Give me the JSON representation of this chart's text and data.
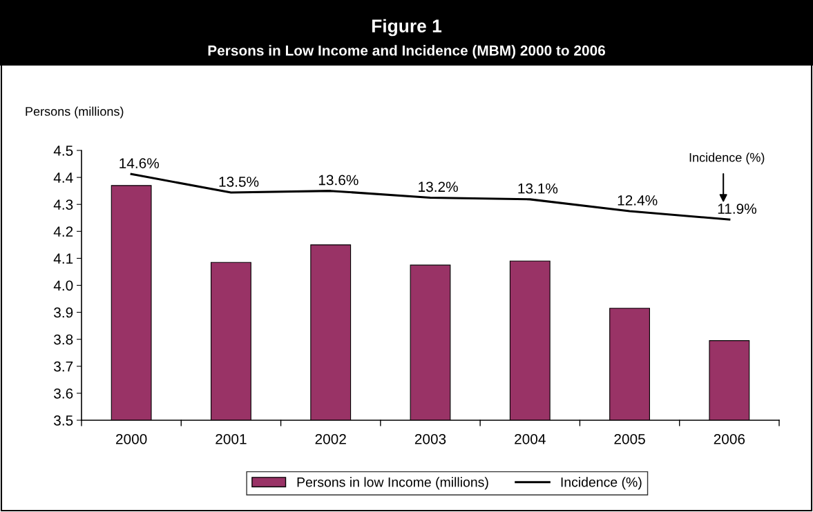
{
  "chart_data": {
    "type": "bar",
    "title": "Figure 1",
    "subtitle": "Persons in Low Income and Incidence (MBM) 2000 to 2006",
    "ylabel": "Persons (millions)",
    "categories": [
      "2000",
      "2001",
      "2002",
      "2003",
      "2004",
      "2005",
      "2006"
    ],
    "series": [
      {
        "name": "Persons in low Income (millions)",
        "color": "#993366",
        "values": [
          4.37,
          4.085,
          4.15,
          4.075,
          4.09,
          3.915,
          3.795
        ]
      },
      {
        "name": "Incidence (%)",
        "type": "line",
        "axis": "y2",
        "color": "#000000",
        "values": [
          14.6,
          13.5,
          13.6,
          13.2,
          13.1,
          12.4,
          11.9
        ],
        "value_labels": [
          "14.6%",
          "13.5%",
          "13.6%",
          "13.2%",
          "13.1%",
          "12.4%",
          "11.9%"
        ]
      }
    ],
    "ylim": [
      3.5,
      4.5
    ],
    "yticks": [
      3.5,
      3.6,
      3.7,
      3.8,
      3.9,
      {
        "value": 4.0,
        "label": "4.0"
      },
      4.1,
      4.2,
      4.3,
      4.4,
      4.5
    ],
    "y2lim": [
      0,
      16
    ],
    "tick_labels": "xy",
    "annotations": [
      "Incidence (%)"
    ],
    "legend": "bottom",
    "grid": false,
    "marker": "none",
    "line_style": "solid"
  }
}
